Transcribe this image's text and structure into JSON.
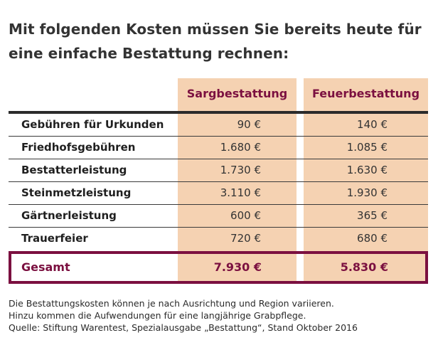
{
  "title_lines": [
    "Mit folgenden Kosten müssen Sie bereits heute für",
    "eine einfache Bestattung rechnen:"
  ],
  "columns": [
    "Sargbestattung",
    "Feuerbestattung"
  ],
  "rows": [
    {
      "label": "Gebühren für Urkunden",
      "sarg": "90 €",
      "feuer": "140 €"
    },
    {
      "label": "Friedhofsgebühren",
      "sarg": "1.680 €",
      "feuer": "1.085 €"
    },
    {
      "label": "Bestatterleistung",
      "sarg": "1.730 €",
      "feuer": "1.630 €"
    },
    {
      "label": "Steinmetzleistung",
      "sarg": "3.110 €",
      "feuer": "1.930 €"
    },
    {
      "label": "Gärtnerleistung",
      "sarg": "600 €",
      "feuer": "365 €"
    },
    {
      "label": "Trauerfeier",
      "sarg": "720 €",
      "feuer": "680 €"
    }
  ],
  "total": {
    "label": "Gesamt",
    "sarg": "7.930 €",
    "feuer": "5.830 €"
  },
  "notes": [
    "Die Bestattungskosten können je nach Ausrichtung und Region variieren.",
    "Hinzu kommen die Aufwendungen für eine langjährige Grabpflege.",
    "Quelle: Stiftung Warentest, Spezialausgabe „Bestattung“, Stand Oktober 2016"
  ],
  "colors": {
    "accent": "#7b1040",
    "column_fill": "#f5d2b2",
    "rule": "#2b2b2b"
  }
}
